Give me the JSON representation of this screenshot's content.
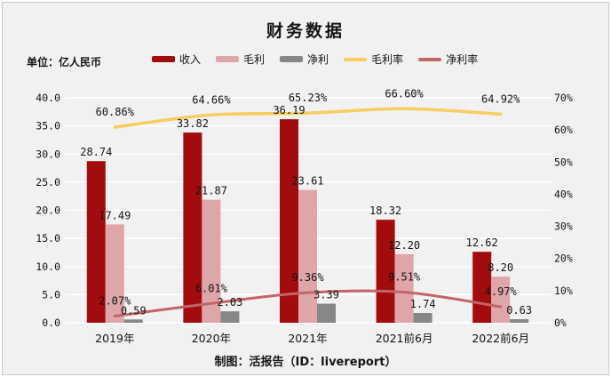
{
  "page": {
    "title": "财务数据",
    "unit_label": "单位：亿人民币",
    "footer": "制图：活报告（ID：livereport）"
  },
  "chart_data": {
    "type": "bar",
    "subtype": "combo-bar-line-dual-axis",
    "title": "财务数据",
    "unit": "亿人民币",
    "categories": [
      "2019年",
      "2020年",
      "2021年",
      "2021前6月",
      "2022前6月"
    ],
    "bar_series": [
      {
        "name": "收入",
        "color": "#a30c0e",
        "values": [
          28.74,
          33.82,
          36.19,
          18.32,
          12.62
        ],
        "value_labels": [
          "28.74",
          "33.82",
          "36.19",
          "18.32",
          "12.62"
        ]
      },
      {
        "name": "毛利",
        "color": "#dfa6aa",
        "values": [
          17.49,
          21.87,
          23.61,
          12.2,
          8.2
        ],
        "value_labels": [
          "17.49",
          "21.87",
          "23.61",
          "12.20",
          "8.20"
        ]
      },
      {
        "name": "净利",
        "color": "#878787",
        "values": [
          0.59,
          2.03,
          3.39,
          1.74,
          0.63
        ],
        "value_labels": [
          "0.59",
          "2.03",
          "3.39",
          "1.74",
          "0.63"
        ]
      }
    ],
    "line_series": [
      {
        "name": "毛利率",
        "color": "#f7cd5e",
        "width": 3.5,
        "axis": "right",
        "values": [
          60.86,
          64.66,
          65.23,
          66.6,
          64.92
        ],
        "value_labels": [
          "60.86%",
          "64.66%",
          "65.23%",
          "66.60%",
          "64.92%"
        ]
      },
      {
        "name": "净利率",
        "color": "#c26567",
        "width": 3,
        "axis": "right",
        "values": [
          2.07,
          6.01,
          9.36,
          9.51,
          4.97
        ],
        "value_labels": [
          "2.07%",
          "6.01%",
          "9.36%",
          "9.51%",
          "4.97%"
        ]
      }
    ],
    "left_axis": {
      "min": 0,
      "max": 40,
      "step": 5,
      "labels": [
        "0.0",
        "5.0",
        "10.0",
        "15.0",
        "20.0",
        "25.0",
        "30.0",
        "35.0",
        "40.0"
      ]
    },
    "right_axis": {
      "min": 0,
      "max": 70,
      "step": 10,
      "labels": [
        "0%",
        "10%",
        "20%",
        "30%",
        "40%",
        "50%",
        "60%",
        "70%"
      ]
    },
    "grid": true,
    "legend_position": "top"
  }
}
